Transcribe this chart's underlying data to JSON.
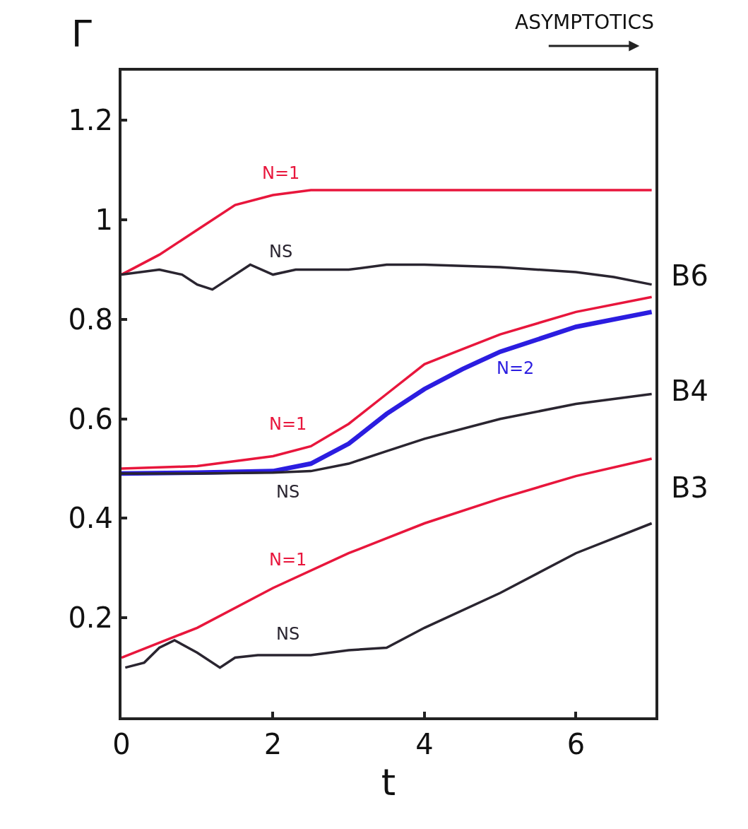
{
  "chart_data": {
    "type": "line",
    "xlabel": "t",
    "ylabel": "Γ",
    "xlim": [
      0,
      7.05
    ],
    "xticks": [
      0,
      2,
      4,
      6
    ],
    "ylim": [
      0,
      1.3
    ],
    "yticks": [
      {
        "value": 0.2,
        "label": "0.2"
      },
      {
        "value": 0.4,
        "label": "0.4"
      },
      {
        "value": 0.6,
        "label": "0.6"
      },
      {
        "value": 0.8,
        "label": "0.8"
      },
      {
        "value": 1,
        "label": "1"
      },
      {
        "value": 1.2,
        "label": "1.2"
      }
    ],
    "legend": false,
    "marker": "none",
    "line_style": "solid",
    "series": [
      {
        "name": "N=1",
        "color": "#e8163c",
        "x": [
          0,
          0.5,
          1,
          1.5,
          2,
          2.5,
          3,
          4,
          5,
          6,
          7
        ],
        "values": [
          0.89,
          0.93,
          0.98,
          1.03,
          1.05,
          1.06,
          1.06,
          1.06,
          1.06,
          1.06,
          1.06
        ]
      },
      {
        "name": "NS",
        "color": "#2a2530",
        "x": [
          0,
          0.5,
          0.8,
          1.0,
          1.2,
          1.4,
          1.7,
          2.0,
          2.3,
          2.5,
          3,
          3.5,
          4,
          5,
          6,
          6.5,
          7
        ],
        "values": [
          0.89,
          0.9,
          0.89,
          0.87,
          0.86,
          0.88,
          0.91,
          0.89,
          0.9,
          0.9,
          0.9,
          0.91,
          0.91,
          0.905,
          0.895,
          0.885,
          0.87
        ]
      },
      {
        "name": "N=1",
        "color": "#e8163c",
        "x": [
          0,
          1,
          2,
          2.5,
          3,
          3.5,
          4,
          4.5,
          5,
          6,
          7
        ],
        "values": [
          0.5,
          0.505,
          0.525,
          0.545,
          0.59,
          0.65,
          0.71,
          0.74,
          0.77,
          0.815,
          0.845
        ]
      },
      {
        "name": "N=2",
        "color": "#2b1de0",
        "x": [
          0,
          1,
          2,
          2.5,
          3,
          3.5,
          4,
          4.5,
          5,
          6,
          7
        ],
        "values": [
          0.49,
          0.492,
          0.495,
          0.51,
          0.55,
          0.61,
          0.66,
          0.7,
          0.735,
          0.785,
          0.815
        ]
      },
      {
        "name": "NS",
        "color": "#2a2530",
        "x": [
          0,
          1,
          2,
          2.5,
          3,
          3.5,
          4,
          5,
          6,
          7
        ],
        "values": [
          0.49,
          0.49,
          0.492,
          0.495,
          0.51,
          0.535,
          0.56,
          0.6,
          0.63,
          0.65
        ]
      },
      {
        "name": "N=1",
        "color": "#e8163c",
        "x": [
          0,
          1,
          2,
          3,
          4,
          5,
          6,
          7
        ],
        "values": [
          0.12,
          0.18,
          0.26,
          0.33,
          0.39,
          0.44,
          0.485,
          0.52
        ]
      },
      {
        "name": "NS",
        "color": "#2a2530",
        "x": [
          0.05,
          0.3,
          0.5,
          0.7,
          1.0,
          1.3,
          1.5,
          1.8,
          2.5,
          3,
          3.5,
          4,
          5,
          6,
          7
        ],
        "values": [
          0.1,
          0.11,
          0.14,
          0.155,
          0.13,
          0.1,
          0.12,
          0.125,
          0.125,
          0.135,
          0.14,
          0.18,
          0.25,
          0.33,
          0.39
        ]
      }
    ],
    "annotations": [
      "B6",
      "B4",
      "B3",
      "ASYMPTOTICS"
    ]
  }
}
